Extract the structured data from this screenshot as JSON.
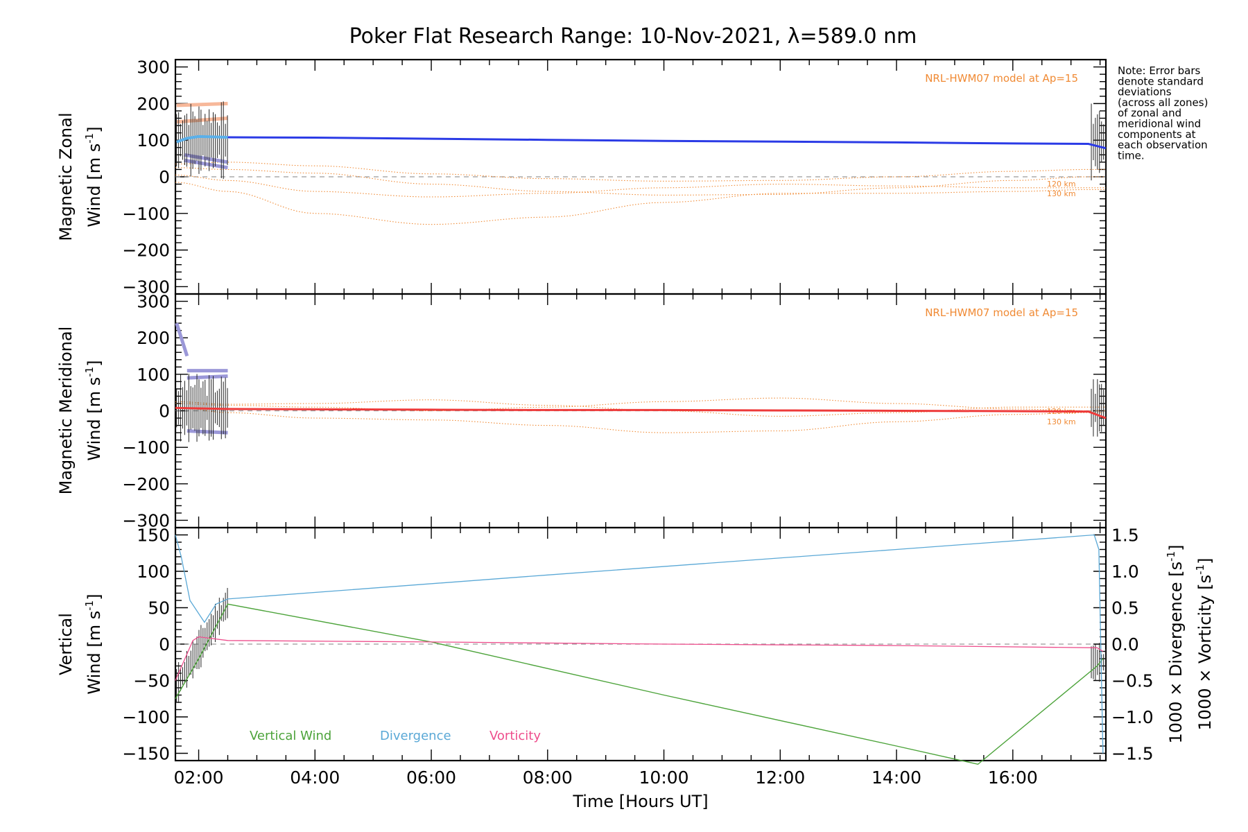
{
  "title": "Poker Flat Research Range: 10-Nov-2021, λ=589.0 nm",
  "note_lines": [
    "Note: Error bars",
    "denote standard",
    "deviations",
    "(across all zones)",
    "of zonal and",
    "meridional wind",
    "components at",
    "each observation",
    "time."
  ],
  "model_label": "NRL-HWM07 model at Ap=15",
  "altitude_labels": [
    "120 km",
    "130 km"
  ],
  "x_axis": {
    "title": "Time [Hours UT]",
    "range_hours": [
      1.6,
      17.6
    ],
    "ticks": [
      2,
      4,
      6,
      8,
      10,
      12,
      14,
      16
    ],
    "tick_labels": [
      "02:00",
      "04:00",
      "06:00",
      "08:00",
      "10:00",
      "12:00",
      "14:00",
      "16:00"
    ]
  },
  "panels": {
    "zonal": {
      "ylabel_line1": "Magnetic Zonal",
      "ylabel_line2": "Wind [m s",
      "ylabel_sup": "-1",
      "ylabel_end": "]",
      "yrange": [
        -320,
        320
      ],
      "yticks": [
        300,
        200,
        100,
        0,
        -100,
        -200,
        -300
      ],
      "ytick_labels": [
        "300",
        "200",
        "100",
        "0",
        "−100",
        "−200",
        "−300"
      ]
    },
    "meridional": {
      "ylabel_line1": "Magnetic Meridional",
      "ylabel_line2": "Wind [m s",
      "ylabel_sup": "-1",
      "ylabel_end": "]",
      "yrange": [
        -320,
        320
      ],
      "yticks": [
        300,
        200,
        100,
        0,
        -100,
        -200,
        -300
      ],
      "ytick_labels": [
        "300",
        "200",
        "100",
        "0",
        "−100",
        "−200",
        "−300"
      ]
    },
    "vertical": {
      "ylabel_line1": "Vertical",
      "ylabel_line2": "Wind [m s",
      "ylabel_sup": "-1",
      "ylabel_end": "]",
      "yrange": [
        -160,
        160
      ],
      "yticks": [
        150,
        100,
        50,
        0,
        -50,
        -100,
        -150
      ],
      "ytick_labels": [
        "150",
        "100",
        "50",
        "0",
        "−50",
        "−100",
        "−150"
      ],
      "right_range": [
        -1.6,
        1.6
      ],
      "right_ticks": [
        1.5,
        1.0,
        0.5,
        0.0,
        -0.5,
        -1.0,
        -1.5
      ],
      "right_tick_labels": [
        "1.5",
        "1.0",
        "0.5",
        "0.0",
        "−0.5",
        "−1.0",
        "−1.5"
      ],
      "right_label_div": "1000 × Divergence [s",
      "right_label_vort": "1000 × Vorticity [s",
      "right_label_sup": "-1",
      "right_label_end": "]"
    }
  },
  "legend": {
    "vertical_wind": "Vertical Wind",
    "divergence": "Divergence",
    "vorticity": "Vorticity"
  },
  "colors": {
    "zonal": "#2b3be6",
    "zonal_light": "#5ab0ea",
    "meridional": "#ee3a3a",
    "model": "#f08a34",
    "vertical": "#4ca33a",
    "divergence": "#5aa8d6",
    "vorticity": "#ee4d8c",
    "errorbar": "#222222",
    "zone_purple": "#9b98d8",
    "zone_peach": "#f7b89a",
    "zone_green": "#9cd39a"
  },
  "chart_data": [
    {
      "type": "line",
      "name": "zonal",
      "x_hours": [
        1.6,
        2.5,
        4,
        6,
        8,
        10,
        12,
        14,
        16,
        17.3,
        17.6
      ],
      "series": [
        {
          "name": "",
          "values": [
            95,
            108,
            107,
            104,
            101,
            98,
            96,
            94,
            91,
            90,
            78
          ]
        }
      ],
      "model_curves": [
        {
          "values": [
            35,
            40,
            30,
            8,
            -5,
            -12,
            -10,
            0,
            15,
            20,
            20
          ]
        },
        {
          "values": [
            25,
            20,
            10,
            -20,
            -40,
            -50,
            -48,
            -30,
            -10,
            0,
            0
          ]
        },
        {
          "values": [
            5,
            -10,
            -40,
            -55,
            -45,
            -30,
            -20,
            -25,
            -30,
            -30,
            -30
          ]
        },
        {
          "values": [
            -15,
            -40,
            -100,
            -130,
            -110,
            -70,
            -45,
            -45,
            -40,
            -35,
            -35
          ]
        }
      ]
    },
    {
      "type": "line",
      "name": "meridional",
      "x_hours": [
        1.6,
        2.5,
        4,
        6,
        8,
        10,
        12,
        14,
        16,
        17.3,
        17.6
      ],
      "series": [
        {
          "name": "",
          "values": [
            8,
            5,
            4,
            3,
            2,
            2,
            1,
            0,
            -1,
            -2,
            -20
          ]
        }
      ],
      "model_curves": [
        {
          "values": [
            25,
            18,
            20,
            30,
            15,
            0,
            -15,
            -5,
            10,
            10,
            10
          ]
        },
        {
          "values": [
            20,
            15,
            10,
            0,
            10,
            25,
            35,
            20,
            5,
            0,
            0
          ]
        },
        {
          "values": [
            10,
            -5,
            -20,
            -25,
            -40,
            -60,
            -55,
            -30,
            -10,
            -5,
            -5
          ]
        }
      ]
    },
    {
      "type": "line",
      "name": "vertical",
      "series": [
        {
          "name": "Vertical Wind",
          "x_hours": [
            1.6,
            2.0,
            2.4,
            2.5,
            6,
            10,
            14,
            15.4,
            17.45,
            17.55
          ],
          "values": [
            -75,
            -20,
            40,
            55,
            3,
            -70,
            -140,
            -165,
            -30,
            -20
          ]
        },
        {
          "name": "Divergence",
          "x_hours": [
            1.6,
            1.7,
            1.85,
            2.1,
            2.3,
            2.5,
            8,
            14,
            17.4,
            17.48,
            17.55
          ],
          "values": [
            1.5,
            1.2,
            0.6,
            0.3,
            0.55,
            0.62,
            0.95,
            1.3,
            1.5,
            1.3,
            -1.5
          ]
        },
        {
          "name": "Vorticity",
          "x_hours": [
            1.6,
            1.9,
            2.0,
            2.5,
            6,
            10,
            14,
            17.45,
            17.55
          ],
          "values": [
            -0.5,
            0.05,
            0.1,
            0.05,
            0.03,
            0.0,
            -0.02,
            -0.05,
            -0.1
          ]
        }
      ],
      "y_range": [
        -160,
        160
      ],
      "y_right_range": [
        -1.6,
        1.6
      ]
    }
  ]
}
